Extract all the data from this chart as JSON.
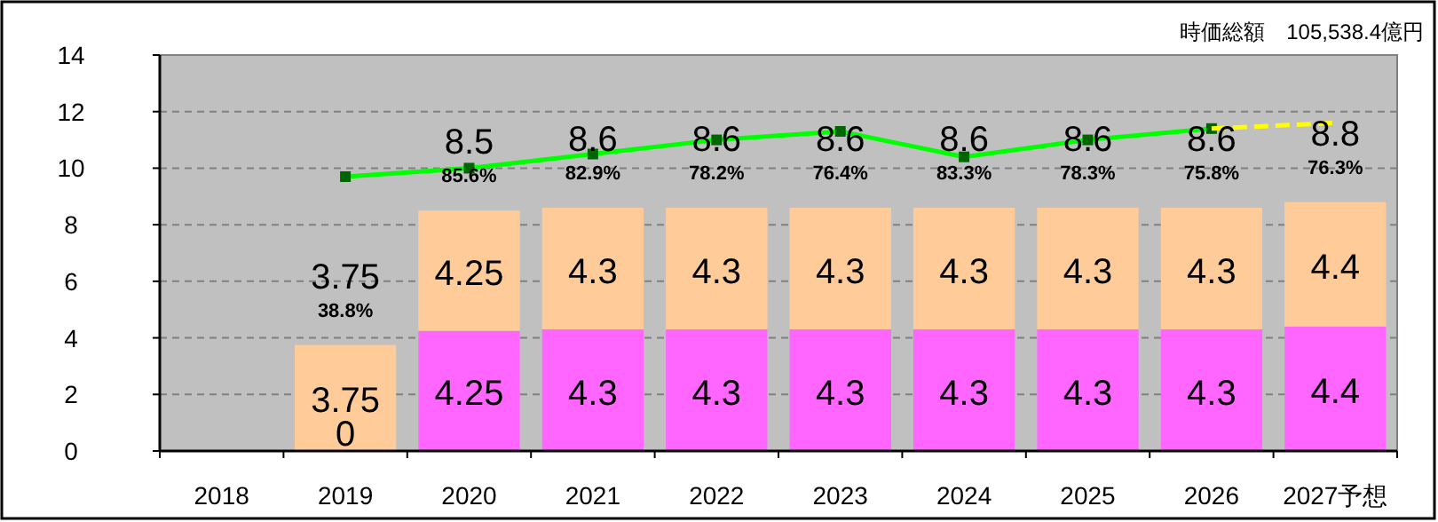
{
  "chart_data": {
    "type": "bar",
    "stacked": true,
    "categories": [
      "2018",
      "2019",
      "2020",
      "2021",
      "2022",
      "2023",
      "2024",
      "2025",
      "2026",
      "2027予想"
    ],
    "series": [
      {
        "color": "#ff66ff",
        "values": [
          null,
          0,
          4.25,
          4.3,
          4.3,
          4.3,
          4.3,
          4.3,
          4.3,
          4.4
        ],
        "value_labels": [
          null,
          "0",
          "4.25",
          "4.3",
          "4.3",
          "4.3",
          "4.3",
          "4.3",
          "4.3",
          "4.4"
        ]
      },
      {
        "color": "#ffcc99",
        "values": [
          null,
          3.75,
          4.25,
          4.3,
          4.3,
          4.3,
          4.3,
          4.3,
          4.3,
          4.4
        ],
        "value_labels": [
          null,
          "3.75",
          "4.25",
          "4.3",
          "4.3",
          "4.3",
          "4.3",
          "4.3",
          "4.3",
          "4.4"
        ]
      },
      {
        "type": "line",
        "color": "#00ff00",
        "marker": "square",
        "values": [
          null,
          9.7,
          10.0,
          10.5,
          11.0,
          11.3,
          10.4,
          11.0,
          11.4,
          null
        ]
      },
      {
        "type": "line",
        "color": "#ffff00",
        "line_style": "dashed",
        "values": [
          null,
          null,
          null,
          null,
          null,
          null,
          null,
          null,
          11.4,
          11.6
        ]
      }
    ],
    "totals": [
      null,
      "3.75",
      "8.5",
      "8.6",
      "8.6",
      "8.6",
      "8.6",
      "8.6",
      "8.6",
      "8.8"
    ],
    "ylim": [
      0,
      14
    ],
    "yticks": [
      0,
      2,
      4,
      6,
      8,
      10,
      12,
      14
    ],
    "grid": "y",
    "annotations": [
      "時価総額　105,538.4億円",
      {
        "text": "38.8%",
        "x": "2019",
        "y": 3.75
      },
      {
        "text": "85.6%",
        "x": "2020",
        "y": 8.5
      },
      {
        "text": "82.9%",
        "x": "2021",
        "y": 8.6
      },
      {
        "text": "78.2%",
        "x": "2022",
        "y": 8.6
      },
      {
        "text": "76.4%",
        "x": "2023",
        "y": 8.6
      },
      {
        "text": "83.3%",
        "x": "2024",
        "y": 8.6
      },
      {
        "text": "78.3%",
        "x": "2025",
        "y": 8.6
      },
      {
        "text": "75.8%",
        "x": "2026",
        "y": 8.6
      },
      {
        "text": "76.3%",
        "x": "2027予想",
        "y": 8.8
      }
    ]
  }
}
